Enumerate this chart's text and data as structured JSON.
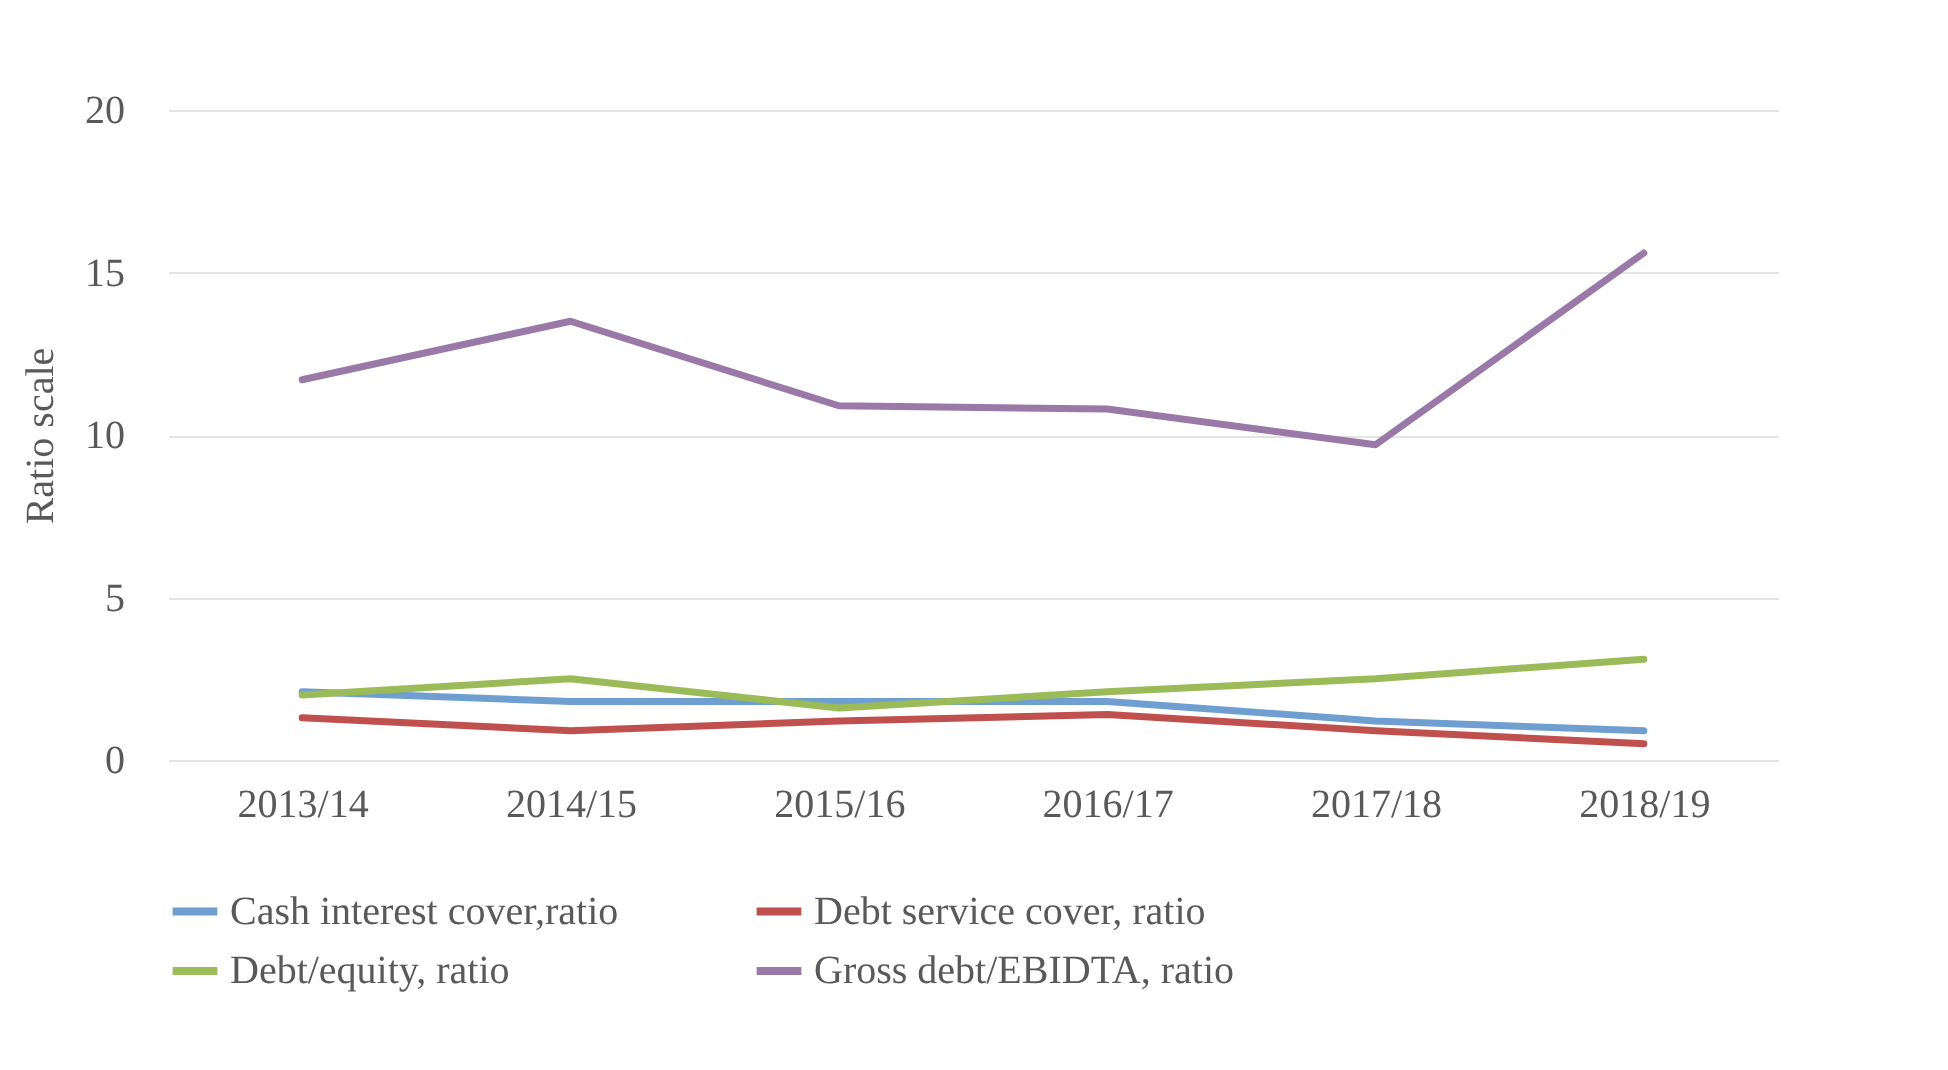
{
  "chart_data": {
    "type": "line",
    "ylabel": "Ratio scale",
    "categories": [
      "2013/14",
      "2014/15",
      "2015/16",
      "2016/17",
      "2017/18",
      "2018/19"
    ],
    "series": [
      {
        "name": "Cash interest cover,ratio",
        "color": "#6f9fd0",
        "values": [
          2.1,
          1.8,
          1.8,
          1.8,
          1.2,
          0.9
        ]
      },
      {
        "name": "Debt service cover, ratio",
        "color": "#c0504d",
        "values": [
          1.3,
          0.9,
          1.2,
          1.4,
          0.9,
          0.5
        ]
      },
      {
        "name": "Debt/equity, ratio",
        "color": "#9bbb59",
        "values": [
          2.0,
          2.5,
          1.6,
          2.1,
          2.5,
          3.1
        ]
      },
      {
        "name": "Gross debt/EBIDTA, ratio",
        "color": "#9a78a8",
        "values": [
          11.7,
          13.5,
          10.9,
          10.8,
          9.7,
          15.6
        ]
      }
    ],
    "ylim": [
      0,
      20
    ],
    "yticks": [
      0,
      5,
      10,
      15,
      20
    ],
    "grid": "y",
    "legend": "bottom",
    "marker": "none",
    "line_style": "solid"
  }
}
